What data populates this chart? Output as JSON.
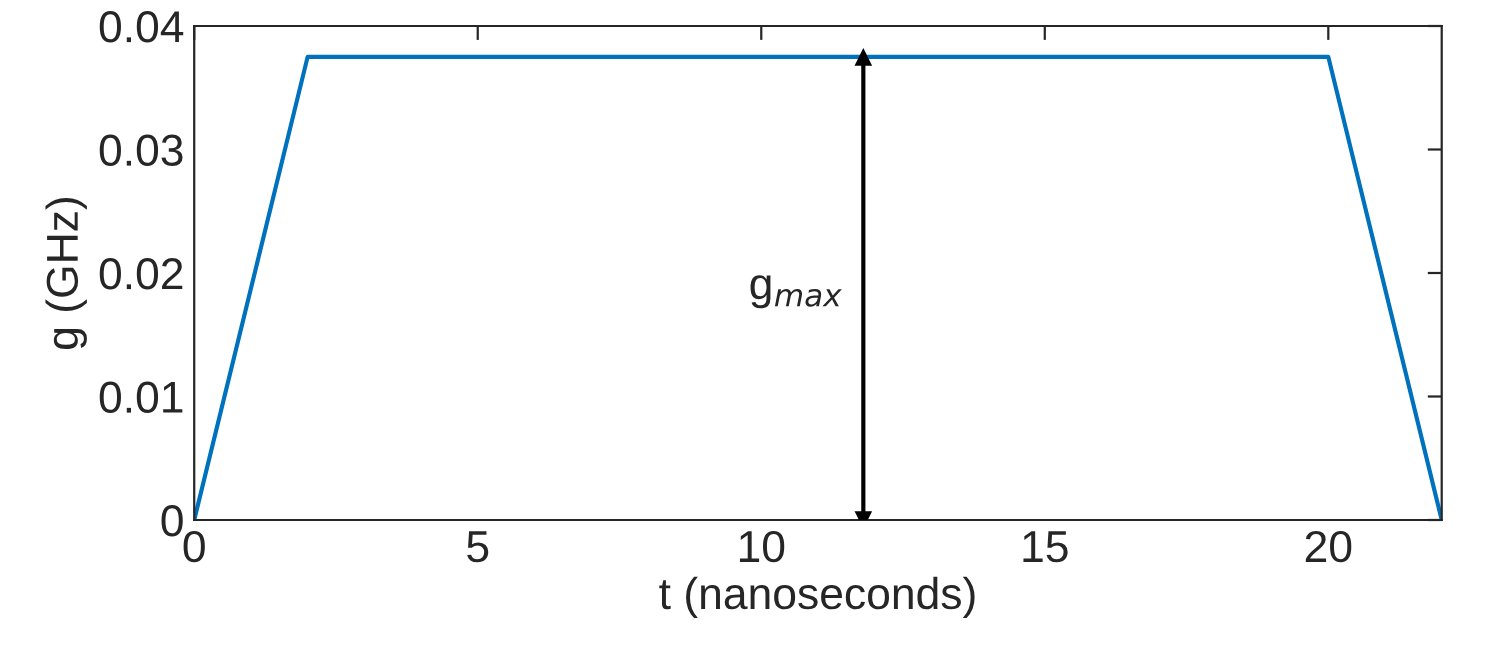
{
  "chart_data": {
    "type": "line",
    "xlabel": "t (nanoseconds)",
    "ylabel": "g (GHz)",
    "x": [
      0,
      2,
      20,
      22
    ],
    "series": [
      {
        "color": "#0072bd",
        "values": [
          0,
          0.0375,
          0.0375,
          0
        ]
      },
      {
        "color": "#000000",
        "x": [
          11.8,
          11.8
        ],
        "values": [
          0,
          0.0375
        ],
        "marker": "triangle"
      }
    ],
    "xlim": [
      0,
      22
    ],
    "xticks": [
      0,
      5,
      10,
      15,
      20
    ],
    "ylim": [
      0,
      0.04
    ],
    "yticks": [
      0,
      0.01,
      0.02,
      0.03,
      0.04
    ],
    "annotations": [
      "g$_{max}$"
    ],
    "grid": false,
    "legend": false
  }
}
